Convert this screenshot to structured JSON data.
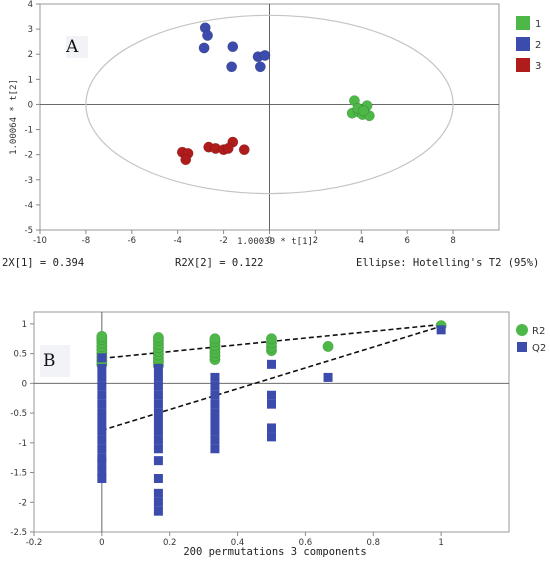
{
  "panel_a": {
    "label": "A",
    "footer": {
      "left": "2X[1] = 0.394",
      "middle": "R2X[2] = 0.122",
      "right": "Ellipse: Hotelling's T2 (95%)"
    }
  },
  "panel_b": {
    "label": "B",
    "footer": "200 permutations 3 components"
  },
  "colors": {
    "group1": "#4db848",
    "group2": "#3c4cad",
    "group3": "#b01c1c",
    "grid": "#c8c8c8",
    "axis": "#8a8a8a"
  },
  "chart_data": [
    {
      "type": "scatter",
      "title": "",
      "xlabel": "1.00039 * t[1]",
      "ylabel": "1.00064 * t[2]",
      "xlim": [
        -10,
        10
      ],
      "ylim": [
        -5,
        4
      ],
      "xticks": [
        -10,
        -8,
        -6,
        -4,
        -2,
        0,
        2,
        4,
        6,
        8
      ],
      "yticks": [
        -5,
        -4,
        -3,
        -2,
        -1,
        0,
        1,
        2,
        3,
        4
      ],
      "ellipse": {
        "center": [
          0,
          0
        ],
        "rx": 8,
        "ry": 3.55
      },
      "legend": {
        "position": "right",
        "marker": "square"
      },
      "series": [
        {
          "name": "1",
          "color_key": "group1",
          "points": [
            [
              3.7,
              0.15
            ],
            [
              4.25,
              -0.05
            ],
            [
              3.6,
              -0.35
            ],
            [
              3.9,
              -0.3
            ],
            [
              4.05,
              -0.4
            ],
            [
              4.35,
              -0.45
            ],
            [
              3.85,
              -0.15
            ],
            [
              4.1,
              -0.25
            ]
          ]
        },
        {
          "name": "2",
          "color_key": "group2",
          "points": [
            [
              -2.8,
              3.05
            ],
            [
              -2.7,
              2.75
            ],
            [
              -2.85,
              2.25
            ],
            [
              -1.6,
              2.3
            ],
            [
              -1.65,
              1.5
            ],
            [
              -0.5,
              1.9
            ],
            [
              -0.2,
              1.95
            ],
            [
              -0.4,
              1.5
            ]
          ]
        },
        {
          "name": "3",
          "color_key": "group3",
          "points": [
            [
              -3.8,
              -1.9
            ],
            [
              -3.55,
              -1.95
            ],
            [
              -3.65,
              -2.2
            ],
            [
              -2.65,
              -1.7
            ],
            [
              -2.35,
              -1.75
            ],
            [
              -2,
              -1.8
            ],
            [
              -1.6,
              -1.5
            ],
            [
              -1.8,
              -1.75
            ],
            [
              -1.1,
              -1.8
            ]
          ]
        }
      ]
    },
    {
      "type": "scatter",
      "title": "",
      "xlabel": "",
      "ylabel": "",
      "xlim": [
        -0.2,
        1.2
      ],
      "ylim": [
        -2.5,
        1.2
      ],
      "xticks": [
        -0.2,
        0,
        0.2,
        0.4,
        0.6,
        0.8,
        1
      ],
      "yticks": [
        -2.5,
        -2,
        -1.5,
        -1,
        -0.5,
        0,
        0.5,
        1
      ],
      "legend": {
        "position": "right",
        "marker": "shape"
      },
      "regression_lines": [
        {
          "name": "R2",
          "from": [
            0,
            0.42
          ],
          "to": [
            1,
            0.99
          ]
        },
        {
          "name": "Q2",
          "from": [
            0,
            -0.79
          ],
          "to": [
            1,
            0.96
          ]
        }
      ],
      "series": [
        {
          "name": "R2",
          "marker": "circle",
          "color_key": "group1",
          "points": [
            [
              0,
              0.32
            ],
            [
              0,
              0.38
            ],
            [
              0,
              0.44
            ],
            [
              0,
              0.5
            ],
            [
              0,
              0.56
            ],
            [
              0,
              0.62
            ],
            [
              0,
              0.68
            ],
            [
              0,
              0.74
            ],
            [
              0,
              0.79
            ],
            [
              0.1667,
              0.3
            ],
            [
              0.1667,
              0.36
            ],
            [
              0.1667,
              0.42
            ],
            [
              0.1667,
              0.48
            ],
            [
              0.1667,
              0.54
            ],
            [
              0.1667,
              0.6
            ],
            [
              0.1667,
              0.66
            ],
            [
              0.1667,
              0.72
            ],
            [
              0.1667,
              0.77
            ],
            [
              0.3333,
              0.4
            ],
            [
              0.3333,
              0.46
            ],
            [
              0.3333,
              0.52
            ],
            [
              0.3333,
              0.58
            ],
            [
              0.3333,
              0.64
            ],
            [
              0.3333,
              0.7
            ],
            [
              0.3333,
              0.75
            ],
            [
              0.5,
              0.55
            ],
            [
              0.5,
              0.61
            ],
            [
              0.5,
              0.68
            ],
            [
              0.5,
              0.75
            ],
            [
              0.6667,
              0.62
            ],
            [
              1,
              0.97
            ]
          ]
        },
        {
          "name": "Q2",
          "marker": "square",
          "color_key": "group2",
          "points": [
            [
              0,
              0.43
            ],
            [
              0,
              0.25
            ],
            [
              0,
              0.1
            ],
            [
              0,
              -0.05
            ],
            [
              0,
              -0.2
            ],
            [
              0,
              -0.35
            ],
            [
              0,
              -0.5
            ],
            [
              0,
              -0.65
            ],
            [
              0,
              -0.8
            ],
            [
              0,
              -0.95
            ],
            [
              0,
              -1.1
            ],
            [
              0,
              -1.25
            ],
            [
              0,
              -1.35
            ],
            [
              0,
              -1.48
            ],
            [
              0,
              -1.6
            ],
            [
              0.1667,
              0.25
            ],
            [
              0.1667,
              0.1
            ],
            [
              0.1667,
              -0.05
            ],
            [
              0.1667,
              -0.2
            ],
            [
              0.1667,
              -0.35
            ],
            [
              0.1667,
              -0.5
            ],
            [
              0.1667,
              -0.65
            ],
            [
              0.1667,
              -0.8
            ],
            [
              0.1667,
              -0.95
            ],
            [
              0.1667,
              -1.1
            ],
            [
              0.1667,
              -1.3
            ],
            [
              0.1667,
              -1.6
            ],
            [
              0.1667,
              -1.85
            ],
            [
              0.1667,
              -2.0
            ],
            [
              0.1667,
              -2.15
            ],
            [
              0.3333,
              0.1
            ],
            [
              0.3333,
              -0.05
            ],
            [
              0.3333,
              -0.2
            ],
            [
              0.3333,
              -0.35
            ],
            [
              0.3333,
              -0.5
            ],
            [
              0.3333,
              -0.65
            ],
            [
              0.3333,
              -0.8
            ],
            [
              0.3333,
              -0.95
            ],
            [
              0.3333,
              -1.1
            ],
            [
              0.5,
              0.32
            ],
            [
              0.5,
              -0.2
            ],
            [
              0.5,
              -0.35
            ],
            [
              0.5,
              -0.75
            ],
            [
              0.5,
              -0.9
            ],
            [
              0.6667,
              0.1
            ],
            [
              1,
              0.9
            ]
          ]
        }
      ]
    }
  ]
}
